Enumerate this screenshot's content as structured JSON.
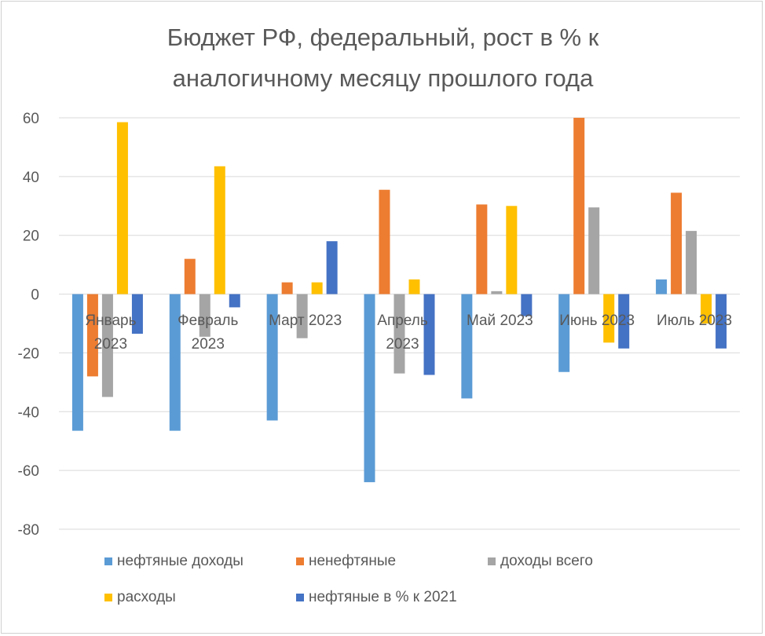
{
  "chart_data": {
    "type": "bar",
    "title": "Бюджет РФ, федеральный, рост в % к аналогичному месяцу прошлого года",
    "title_lines": [
      "Бюджет РФ, федеральный, рост в % к",
      "аналогичному месяцу прошлого года"
    ],
    "categories": [
      "Январь 2023",
      "Февраль 2023",
      "Март 2023",
      "Апрель 2023",
      "Май 2023",
      "Июнь 2023",
      "Июль 2023"
    ],
    "category_lines": [
      [
        "Январь",
        "2023"
      ],
      [
        "Февраль",
        "2023"
      ],
      [
        "Март 2023"
      ],
      [
        "Апрель",
        "2023"
      ],
      [
        "Май 2023"
      ],
      [
        "Июнь 2023"
      ],
      [
        "Июль 2023"
      ]
    ],
    "ylim": [
      -80,
      60
    ],
    "yticks": [
      60,
      40,
      20,
      0,
      -20,
      -40,
      -60,
      -80
    ],
    "grid": true,
    "legend_position": "bottom",
    "series": [
      {
        "name": "нефтяные доходы",
        "color": "#5B9BD5",
        "values": [
          -46.5,
          -46.5,
          -43,
          -64,
          -35.5,
          -26.5,
          5
        ]
      },
      {
        "name": "ненефтяные",
        "color": "#ED7D31",
        "values": [
          -28,
          12,
          4,
          35.5,
          30.5,
          60,
          34.5
        ]
      },
      {
        "name": "доходы всего",
        "color": "#A5A5A5",
        "values": [
          -35,
          -14.5,
          -15,
          -27,
          1,
          29.5,
          21.5
        ]
      },
      {
        "name": "расходы",
        "color": "#FFC000",
        "values": [
          58.5,
          43.5,
          4,
          5,
          30,
          -16.5,
          -10
        ]
      },
      {
        "name": "нефтяные в % к 2021",
        "color": "#4472C4",
        "values": [
          -13.5,
          -4.5,
          18,
          -27.5,
          -7.5,
          -18.5,
          -18.5
        ]
      }
    ]
  }
}
